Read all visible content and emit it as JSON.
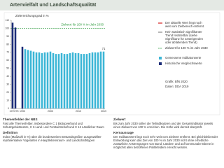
{
  "header": {
    "title": "Artenvielfalt und Landschaftsqualität"
  },
  "chart_data": {
    "type": "bar",
    "ylabel": "Zielerreichungsgrad in %",
    "categories": [
      "1970/75",
      null,
      "1990",
      null,
      null,
      null,
      null,
      null,
      null,
      null,
      null,
      null,
      "2000",
      null,
      null,
      null,
      null,
      null,
      null,
      null,
      null,
      null,
      "2010",
      null,
      null,
      null,
      null,
      null,
      null,
      null,
      null,
      "2019"
    ],
    "series": [
      {
        "name": "Historische Vergleichswerte",
        "color": "#1c2d78",
        "values": [
          107,
          101,
          77,
          null,
          null,
          null,
          null,
          null,
          null,
          null,
          null,
          null,
          null,
          null,
          null,
          null,
          null,
          null,
          null,
          null,
          null,
          null,
          null,
          null,
          null,
          null,
          null,
          null,
          null,
          null,
          null,
          null
        ]
      },
      {
        "name": "Gemessene Indikatorwerte",
        "color": "#3cb6d6",
        "values": [
          null,
          null,
          null,
          74,
          73,
          72,
          71,
          70,
          70,
          69,
          70,
          70,
          71,
          69,
          68,
          68,
          69,
          68,
          68,
          69,
          70,
          69,
          69,
          68,
          68,
          68,
          69,
          70,
          70,
          70,
          71,
          71
        ]
      }
    ],
    "ylim": [
      0,
      110
    ],
    "yticks": [
      0,
      10,
      20,
      30,
      40,
      50,
      60,
      70,
      80,
      90,
      100,
      110
    ],
    "target": {
      "value": 100,
      "label": "Zielwert für 100 % im Jahr 2030",
      "color": "#2e9a3e"
    },
    "legend_notes": [
      {
        "label": "Der aktuelle Wert liegt noch weit vom Zielbereich entfernt.",
        "color": "#d42020"
      },
      {
        "label": "Kein statistisch signifikanter Trend feststellbar (siehe Signifikanz für ansteigenden oder abfallenden Trend)",
        "color": "#888888"
      }
    ],
    "sources": [
      "Grafik: BfN 2020",
      "Daten: DDA 2019"
    ]
  },
  "sections": [
    {
      "heading": "Themenfelder der NBS",
      "text": "Fast alle Themenfelder, insbesondere C 1 Biotopverbund und Schutzgebietsnetze, C 6 Land- und Forstwirtschaft und C 12 Ländlicher Raum"
    },
    {
      "heading": "Definition",
      "text": "Index (Maßzahl in %) über die bundesweiten Bestandsgrößen ausgewählter repräsentativer Vogelarten in Hauptlebensraum- und Landschaftstypen"
    },
    {
      "heading": "Zielwert",
      "text": "Bis zum Jahr 2030 sollen die Teilindikatoren und der Gesamtindikator jeweils einen Zielwert von 100 % erreichen. Die Höhe wird derzeit überprüft."
    },
    {
      "heading": "Kernaussage",
      "text": "Der Indikatorwert liegt noch sehr weit vom Zielwert entfernt. Bei gleichbleibender Entwicklung kann das Ziel von 100 % im Jahr 2030 nicht ohne erhebliche zusätzliche Anstrengungen von Bund, Ländern und auf kommunaler Ebene in möglichst allen betroffenen Politikfeldern erreicht werden."
    }
  ]
}
